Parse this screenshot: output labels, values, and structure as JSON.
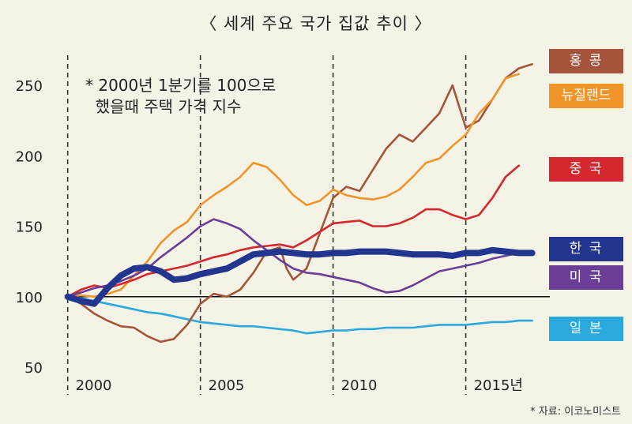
{
  "chart_data": {
    "type": "line",
    "title": "〈 세계 주요 국가 집값 추이 〉",
    "note_lines": [
      "* 2000년 1분기를 100으로",
      "  했을때 주택 가격 지수"
    ],
    "source": "* 자료: 이코노미스트",
    "x_ticks": [
      2000,
      2005,
      2010,
      2015
    ],
    "x_tick_labels": [
      "2000",
      "2005",
      "2010",
      "2015년"
    ],
    "xlim": [
      1999.95,
      2017.75
    ],
    "y_ticks": [
      50,
      100,
      150,
      200,
      250
    ],
    "ylim": [
      50,
      265
    ],
    "reference_line": 100,
    "dashed_years": [
      2000,
      2005,
      2010,
      2015
    ],
    "series": [
      {
        "name": "홍 콩",
        "color": "#a3543a",
        "x": [
          2000,
          2000.5,
          2001,
          2001.5,
          2002,
          2002.5,
          2003,
          2003.5,
          2004,
          2004.5,
          2005,
          2005.5,
          2006,
          2006.5,
          2007,
          2007.5,
          2008,
          2008.25,
          2008.5,
          2009,
          2009.5,
          2010,
          2010.5,
          2011,
          2011.5,
          2012,
          2012.5,
          2013,
          2013.5,
          2014,
          2014.5,
          2015,
          2015.5,
          2016,
          2016.5,
          2017,
          2017.5
        ],
        "y": [
          100,
          95,
          88,
          83,
          79,
          78,
          72,
          68,
          70,
          80,
          95,
          102,
          100,
          105,
          117,
          132,
          135,
          120,
          112,
          120,
          145,
          170,
          178,
          175,
          190,
          205,
          215,
          210,
          220,
          230,
          250,
          220,
          225,
          240,
          255,
          262,
          265
        ]
      },
      {
        "name": "뉴질랜드",
        "color": "#f0952a",
        "x": [
          2000,
          2000.5,
          2001,
          2001.5,
          2002,
          2002.5,
          2003,
          2003.5,
          2004,
          2004.5,
          2005,
          2005.5,
          2006,
          2006.5,
          2007,
          2007.5,
          2008,
          2008.5,
          2009,
          2009.5,
          2010,
          2010.5,
          2011,
          2011.5,
          2012,
          2012.5,
          2013,
          2013.5,
          2014,
          2014.5,
          2015,
          2015.5,
          2016,
          2016.5,
          2017
        ],
        "y": [
          100,
          101,
          100,
          102,
          105,
          115,
          125,
          138,
          147,
          153,
          165,
          172,
          178,
          185,
          195,
          192,
          183,
          172,
          165,
          168,
          176,
          172,
          170,
          169,
          171,
          176,
          185,
          195,
          198,
          207,
          215,
          230,
          240,
          255,
          258
        ]
      },
      {
        "name": "중 국",
        "color": "#d4282e",
        "x": [
          2000,
          2000.5,
          2001,
          2001.5,
          2002,
          2002.5,
          2003,
          2003.5,
          2004,
          2004.5,
          2005,
          2005.5,
          2006,
          2006.5,
          2007,
          2007.5,
          2008,
          2008.5,
          2009,
          2009.5,
          2010,
          2010.5,
          2011,
          2011.5,
          2012,
          2012.5,
          2013,
          2013.5,
          2014,
          2014.5,
          2015,
          2015.5,
          2016,
          2016.5,
          2017
        ],
        "y": [
          100,
          105,
          108,
          106,
          109,
          112,
          116,
          118,
          120,
          122,
          125,
          128,
          130,
          133,
          135,
          136,
          137,
          135,
          140,
          146,
          152,
          153,
          154,
          150,
          150,
          152,
          156,
          162,
          162,
          158,
          155,
          158,
          170,
          185,
          193
        ]
      },
      {
        "name": "미 국",
        "color": "#6a3e97",
        "x": [
          2000,
          2000.5,
          2001,
          2001.5,
          2002,
          2002.5,
          2003,
          2003.5,
          2004,
          2004.5,
          2005,
          2005.5,
          2006,
          2006.5,
          2007,
          2007.5,
          2008,
          2008.5,
          2009,
          2009.5,
          2010,
          2010.5,
          2011,
          2011.5,
          2012,
          2012.5,
          2013,
          2013.5,
          2014,
          2014.5,
          2015,
          2015.5,
          2016,
          2016.5,
          2017
        ],
        "y": [
          100,
          103,
          106,
          108,
          111,
          115,
          120,
          128,
          135,
          142,
          150,
          155,
          152,
          148,
          140,
          133,
          126,
          120,
          117,
          116,
          114,
          112,
          110,
          106,
          103,
          104,
          108,
          113,
          118,
          120,
          122,
          124,
          127,
          129,
          131
        ]
      },
      {
        "name": "한 국",
        "color": "#23368f",
        "x": [
          2000,
          2000.5,
          2001,
          2001.5,
          2002,
          2002.5,
          2003,
          2003.5,
          2004,
          2004.5,
          2005,
          2005.5,
          2006,
          2006.5,
          2007,
          2007.5,
          2008,
          2008.5,
          2009,
          2009.5,
          2010,
          2010.5,
          2011,
          2011.5,
          2012,
          2012.5,
          2013,
          2013.5,
          2014,
          2014.5,
          2015,
          2015.5,
          2016,
          2016.5,
          2017,
          2017.5
        ],
        "y": [
          100,
          97,
          95,
          106,
          115,
          120,
          121,
          118,
          112,
          113,
          116,
          118,
          120,
          125,
          130,
          131,
          132,
          131,
          130,
          130,
          131,
          131,
          132,
          132,
          132,
          131,
          130,
          130,
          130,
          129,
          131,
          131,
          133,
          132,
          131,
          131
        ]
      },
      {
        "name": "일 본",
        "color": "#2aa9de",
        "x": [
          2000,
          2000.5,
          2001,
          2001.5,
          2002,
          2002.5,
          2003,
          2003.5,
          2004,
          2004.5,
          2005,
          2005.5,
          2006,
          2006.5,
          2007,
          2007.5,
          2008,
          2008.5,
          2009,
          2009.5,
          2010,
          2010.5,
          2011,
          2011.5,
          2012,
          2012.5,
          2013,
          2013.5,
          2014,
          2014.5,
          2015,
          2015.5,
          2016,
          2016.5,
          2017,
          2017.5
        ],
        "y": [
          100,
          99,
          97,
          95,
          93,
          91,
          89,
          88,
          86,
          84,
          82,
          81,
          80,
          79,
          79,
          78,
          77,
          76,
          74,
          75,
          76,
          76,
          77,
          77,
          78,
          78,
          78,
          79,
          80,
          80,
          80,
          81,
          82,
          82,
          83,
          83
        ]
      }
    ]
  }
}
